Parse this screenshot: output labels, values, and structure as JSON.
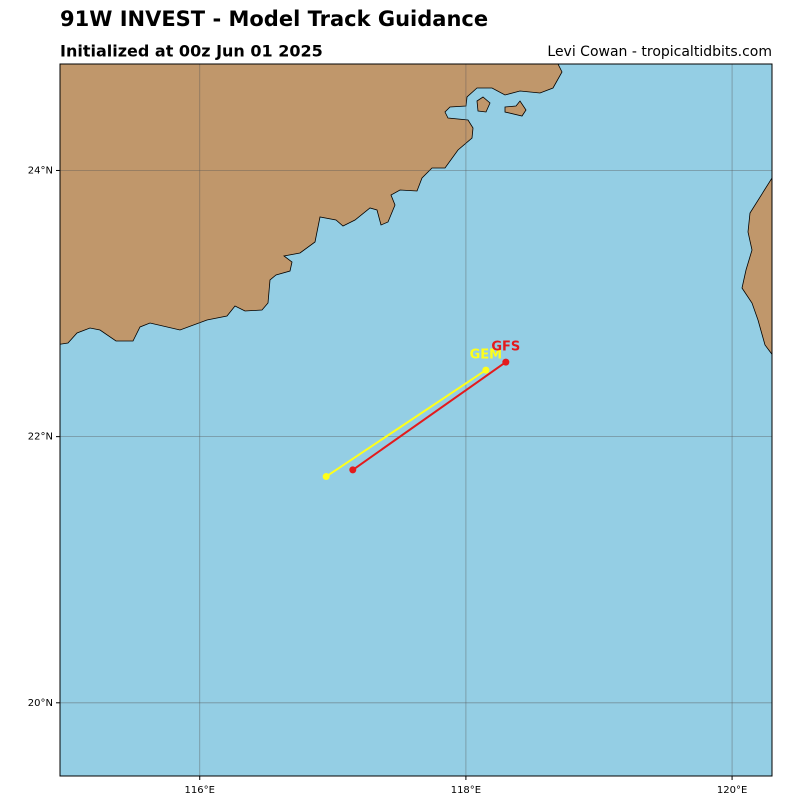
{
  "chart_data": {
    "type": "line",
    "title": "91W INVEST - Model Track Guidance",
    "subtitle": "Initialized at 00z Jun 01 2025",
    "credit": "Levi Cowan - tropicaltidbits.com",
    "xlim": [
      114.95,
      120.3
    ],
    "ylim": [
      19.45,
      24.8
    ],
    "xticks": [
      {
        "value": 116,
        "label": "116°E"
      },
      {
        "value": 118,
        "label": "118°E"
      },
      {
        "value": 120,
        "label": "120°E"
      }
    ],
    "yticks": [
      {
        "value": 20,
        "label": "20°N"
      },
      {
        "value": 22,
        "label": "22°N"
      },
      {
        "value": 24,
        "label": "24°N"
      }
    ],
    "grid": true,
    "series": [
      {
        "name": "GEM",
        "color": "#ffff1a",
        "x": [
          116.95,
          118.15
        ],
        "values": [
          21.7,
          22.5
        ]
      },
      {
        "name": "GFS",
        "color": "#e41a1c",
        "x": [
          117.15,
          118.3
        ],
        "values": [
          21.75,
          22.56
        ]
      }
    ]
  }
}
